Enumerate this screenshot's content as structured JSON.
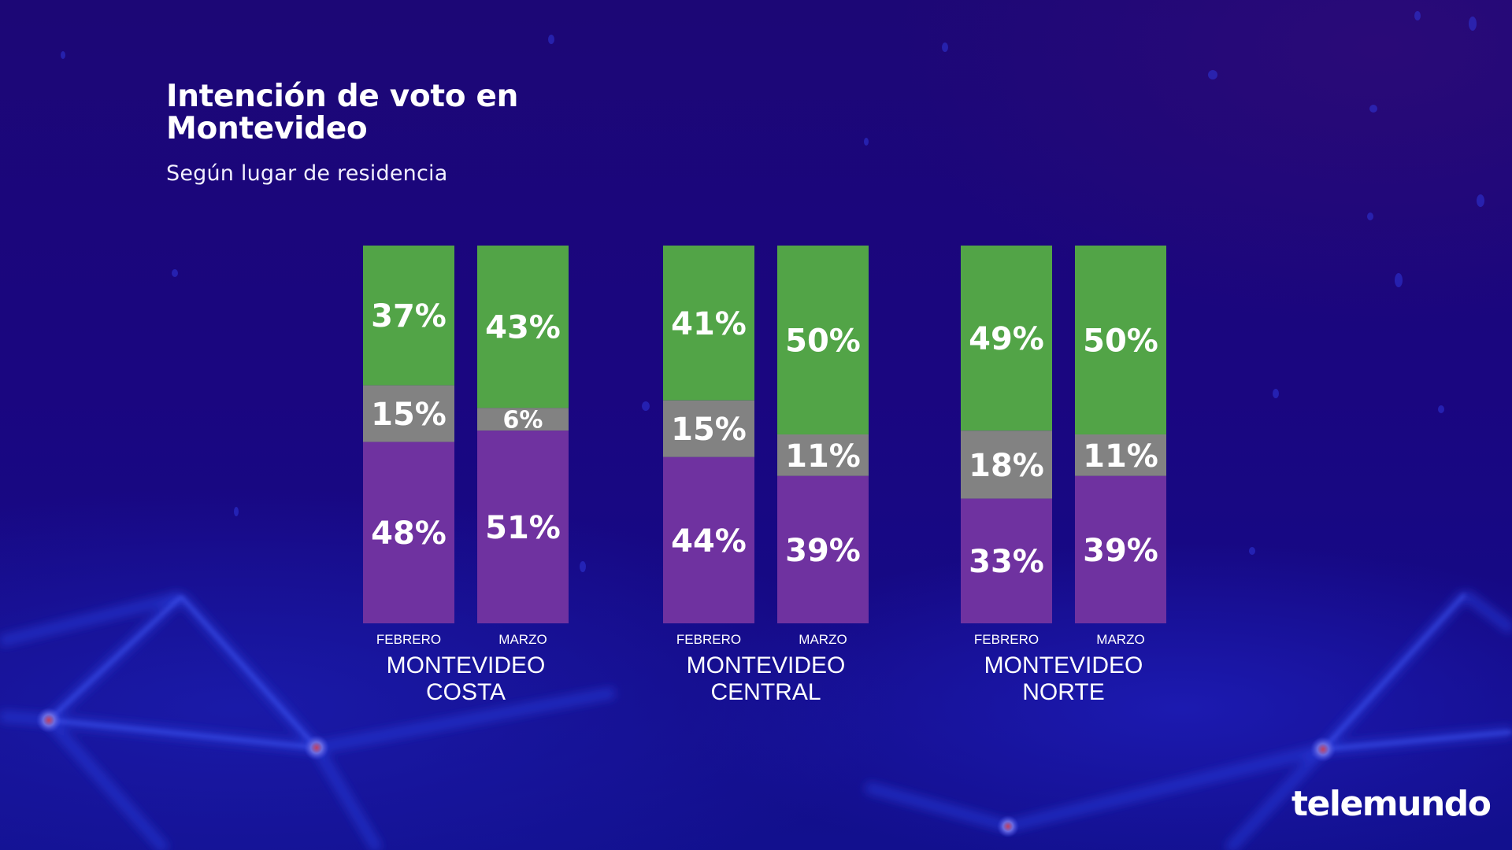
{
  "header": {
    "title": "Intención de voto en Montevideo",
    "subtitle": "Según lugar de residencia"
  },
  "brand": {
    "logo_text": "telemundo"
  },
  "colors": {
    "green": "#52a447",
    "gray": "#828282",
    "purple": "#6f32a0"
  },
  "chart_data": {
    "type": "bar",
    "stacked": true,
    "title": "Intención de voto en Montevideo",
    "subtitle": "Según lugar de residencia",
    "xlabel": "",
    "ylabel": "",
    "ylim": [
      0,
      100
    ],
    "grid": false,
    "legend": "none",
    "groups": [
      {
        "name": "MONTEVIDEO COSTA",
        "lines": [
          "MONTEVIDEO",
          "COSTA"
        ]
      },
      {
        "name": "MONTEVIDEO CENTRAL",
        "lines": [
          "MONTEVIDEO",
          "CENTRAL"
        ]
      },
      {
        "name": "MONTEVIDEO NORTE",
        "lines": [
          "MONTEVIDEO",
          "NORTE"
        ]
      }
    ],
    "categories": [
      "FEBRERO",
      "MARZO"
    ],
    "series": [
      {
        "name": "green",
        "color": "#52a447",
        "values": [
          [
            37,
            43
          ],
          [
            41,
            50
          ],
          [
            49,
            50
          ]
        ],
        "labels": [
          [
            "37%",
            "43%"
          ],
          [
            "41%",
            "50%"
          ],
          [
            "49%",
            "50%"
          ]
        ]
      },
      {
        "name": "gray",
        "color": "#828282",
        "values": [
          [
            15,
            6
          ],
          [
            15,
            11
          ],
          [
            18,
            11
          ]
        ],
        "labels": [
          [
            "15%",
            "6%"
          ],
          [
            "15%",
            "11%"
          ],
          [
            "18%",
            "11%"
          ]
        ]
      },
      {
        "name": "purple",
        "color": "#6f32a0",
        "values": [
          [
            48,
            51
          ],
          [
            44,
            39
          ],
          [
            33,
            39
          ]
        ],
        "labels": [
          [
            "48%",
            "51%"
          ],
          [
            "44%",
            "39%"
          ],
          [
            "33%",
            "39%"
          ]
        ]
      }
    ]
  }
}
